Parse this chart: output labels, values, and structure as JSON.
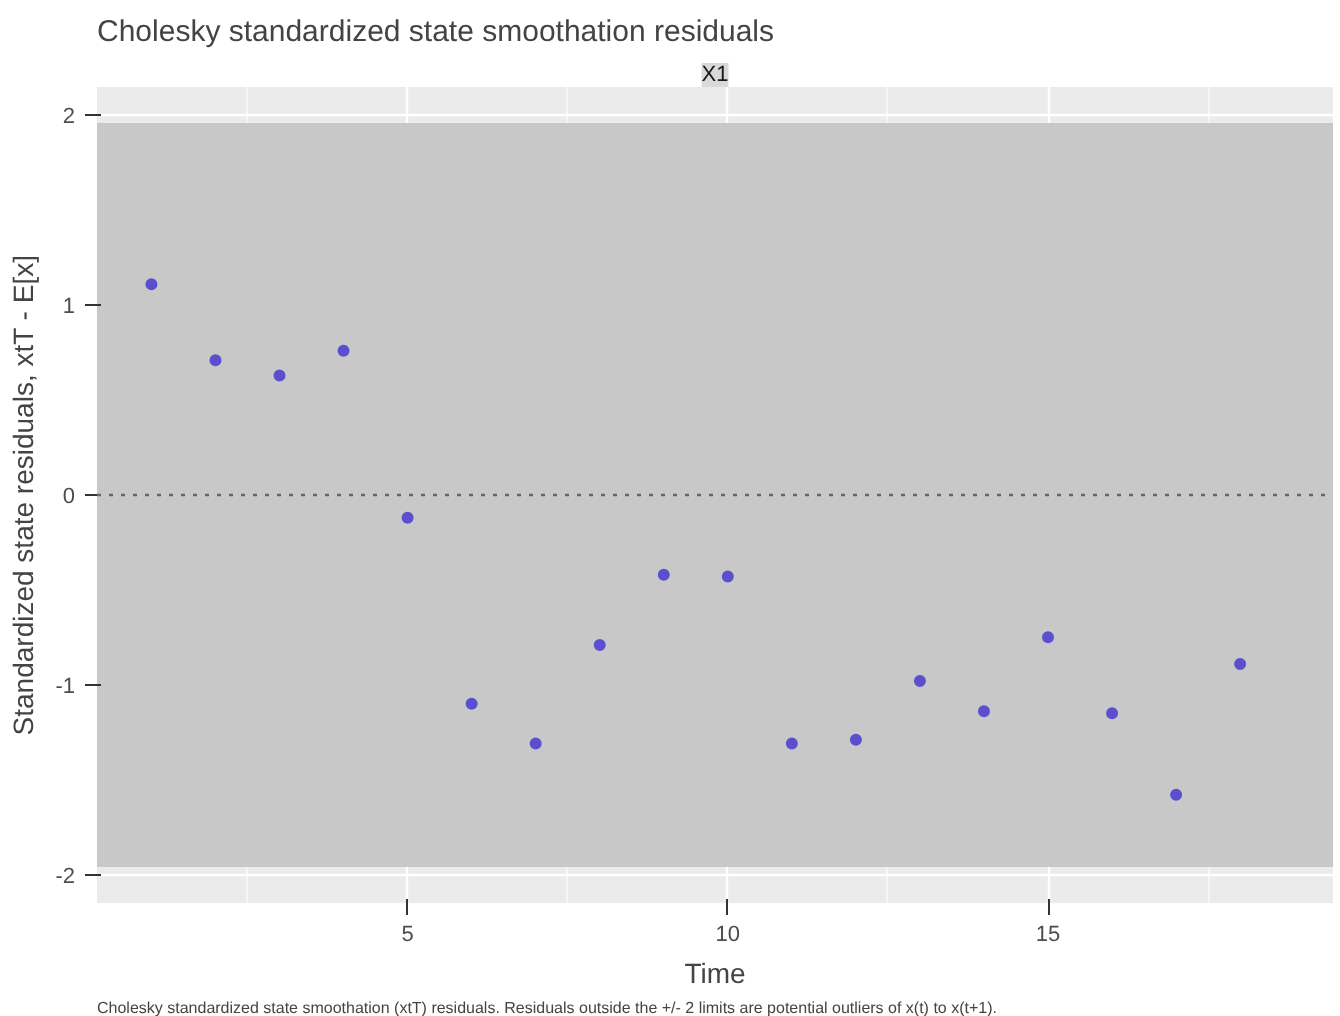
{
  "chart_data": {
    "type": "scatter",
    "title": "Cholesky standardized state smoothation residuals",
    "subtitle": "X1",
    "xlabel": "Time",
    "ylabel": "Standardized state residuals, xtT - E[x]",
    "x": [
      1,
      2,
      3,
      4,
      5,
      6,
      7,
      8,
      9,
      10,
      11,
      12,
      13,
      14,
      15,
      16,
      17,
      18
    ],
    "series": [
      {
        "color": "#5b4fcf",
        "values": [
          1.11,
          0.71,
          0.63,
          0.76,
          -0.12,
          -1.1,
          -1.31,
          -0.79,
          -0.42,
          -0.43,
          -1.31,
          -1.29,
          -0.98,
          -1.14,
          -0.75,
          -1.15,
          -1.58,
          -0.89
        ]
      }
    ],
    "xlim": [
      0.15,
      19.45
    ],
    "ylim": [
      -2.15,
      2.15
    ],
    "xticks": [
      5,
      10,
      15
    ],
    "yticks": [
      -2,
      -1,
      0,
      1,
      2
    ],
    "ref_lines": [
      {
        "axis": "y",
        "value": 0,
        "line_style": "dotted",
        "color": "#666666"
      }
    ],
    "bands": [
      {
        "axis": "y",
        "from": -1.96,
        "to": 1.96,
        "color": "#c8c8c8"
      }
    ],
    "grid": true,
    "marker": "circle",
    "annotations": [
      "Cholesky standardized state smoothation (xtT) residuals. Residuals outside the +/- 2 limits are potential outliers of x(t) to x(t+1)."
    ]
  }
}
